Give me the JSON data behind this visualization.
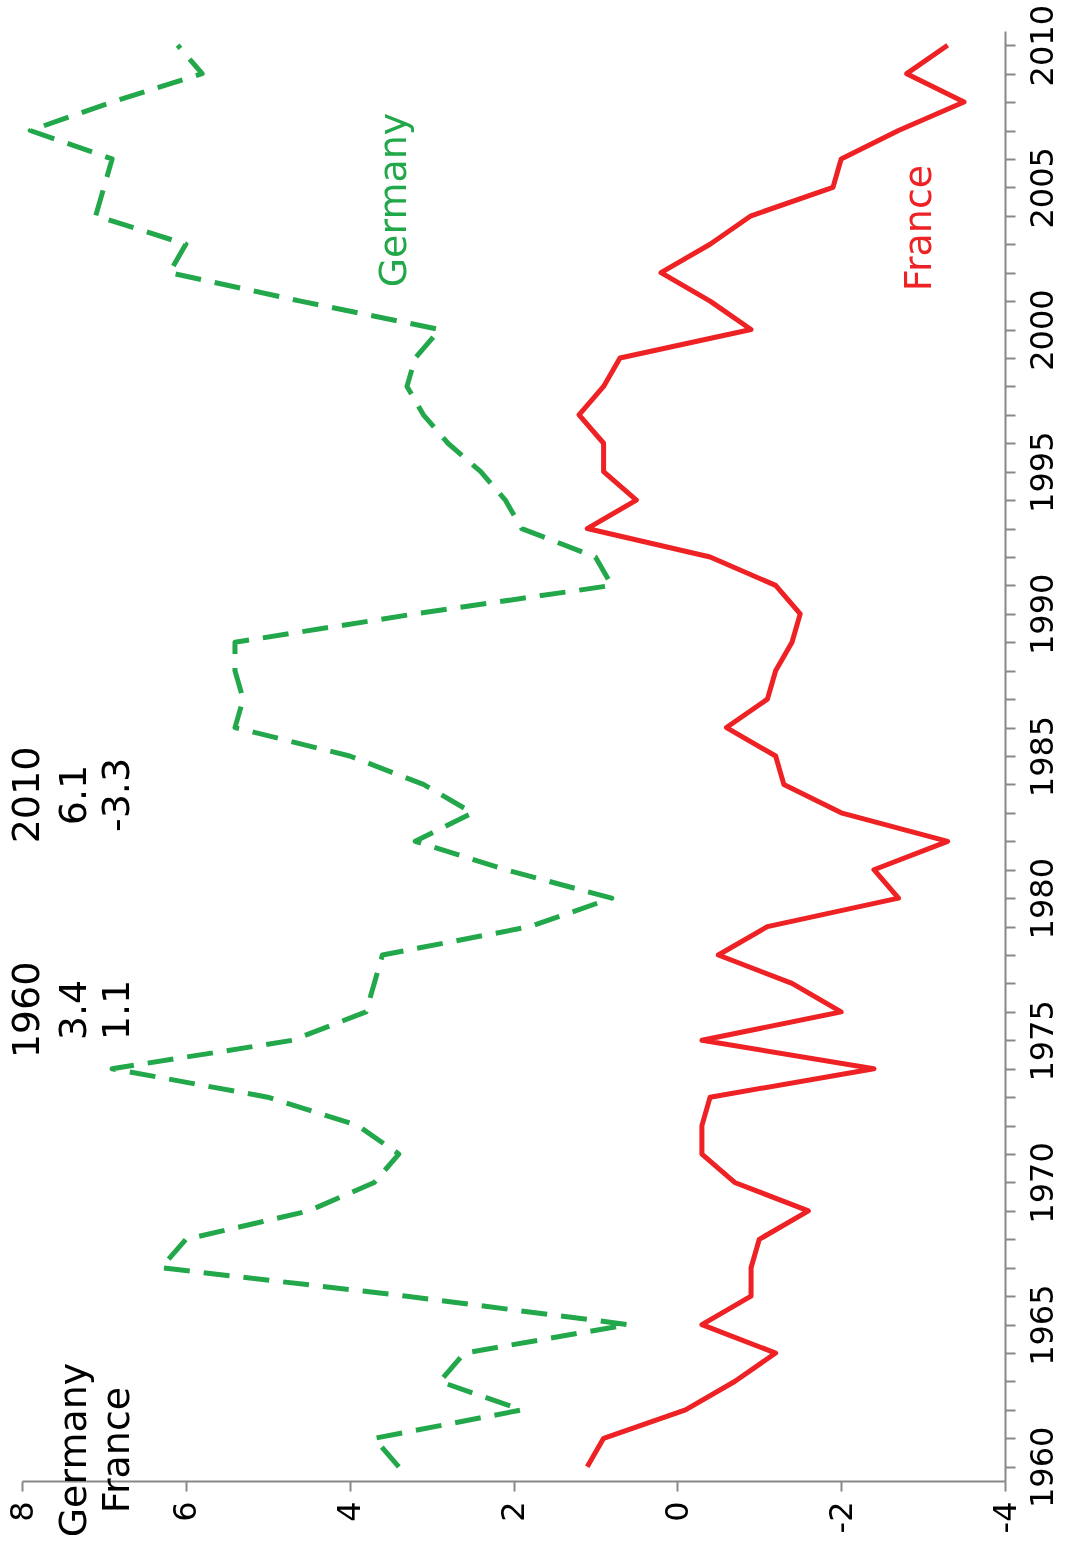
{
  "chart_data": {
    "type": "line",
    "series": [
      {
        "name": "Germany",
        "color": "#22a84a",
        "line_style": "dashed",
        "x": [
          3.4,
          3.7,
          1.9,
          2.9,
          2.6,
          0.6,
          3.3,
          6.3,
          6.0,
          4.5,
          3.7,
          3.4,
          3.9,
          5.0,
          6.9,
          4.7,
          3.8,
          3.7,
          3.6,
          1.8,
          0.8,
          2.1,
          3.2,
          2.5,
          3.1,
          4.0,
          5.4,
          5.3,
          5.4,
          5.4,
          3.2,
          0.8,
          1.0,
          1.9,
          2.1,
          2.4,
          2.8,
          3.1,
          3.3,
          3.2,
          2.9,
          4.6,
          6.2,
          6.0,
          7.1,
          7.0,
          6.9,
          7.9,
          6.9,
          5.8,
          6.1
        ],
        "values": [
          1960,
          1961,
          1962,
          1963,
          1964,
          1965,
          1966,
          1967,
          1968,
          1969,
          1970,
          1971,
          1972,
          1973,
          1974,
          1975,
          1976,
          1977,
          1978,
          1979,
          1980,
          1981,
          1982,
          1983,
          1984,
          1985,
          1986,
          1987,
          1988,
          1989,
          1990,
          1991,
          1992,
          1993,
          1994,
          1995,
          1996,
          1997,
          1998,
          1999,
          2000,
          2001,
          2002,
          2003,
          2004,
          2005,
          2006,
          2007,
          2008,
          2009,
          2010
        ]
      },
      {
        "name": "France",
        "color": "#ee2124",
        "line_style": "solid",
        "x": [
          1.1,
          0.9,
          -0.1,
          -0.7,
          -1.2,
          -0.3,
          -0.9,
          -0.9,
          -1.0,
          -1.6,
          -0.7,
          -0.3,
          -0.3,
          -0.4,
          -2.4,
          -0.3,
          -2.0,
          -1.4,
          -0.5,
          -1.1,
          -2.7,
          -2.4,
          -3.3,
          -2.0,
          -1.3,
          -1.2,
          -0.6,
          -1.1,
          -1.2,
          -1.4,
          -1.5,
          -1.2,
          -0.4,
          1.1,
          0.5,
          0.9,
          0.9,
          1.2,
          0.9,
          0.7,
          -0.9,
          -0.4,
          0.2,
          -0.4,
          -0.9,
          -1.9,
          -2.0,
          -2.7,
          -3.5,
          -2.8,
          -3.3
        ],
        "values": [
          1960,
          1961,
          1962,
          1963,
          1964,
          1965,
          1966,
          1967,
          1968,
          1969,
          1970,
          1971,
          1972,
          1973,
          1974,
          1975,
          1976,
          1977,
          1978,
          1979,
          1980,
          1981,
          1982,
          1983,
          1984,
          1985,
          1986,
          1987,
          1988,
          1989,
          1990,
          1991,
          1992,
          1993,
          1994,
          1995,
          1996,
          1997,
          1998,
          1999,
          2000,
          2001,
          2002,
          2003,
          2004,
          2005,
          2006,
          2007,
          2008,
          2009,
          2010
        ]
      }
    ],
    "xlim": [
      8,
      -4
    ],
    "xticks": [
      8,
      6,
      4,
      2,
      0,
      -2,
      -4
    ],
    "ylim": [
      1959.5,
      2010.5
    ],
    "yticks": [
      1960,
      {
        "value": 1961,
        "label": null
      },
      {
        "value": 1962,
        "label": null
      },
      {
        "value": 1963,
        "label": null
      },
      {
        "value": 1964,
        "label": null
      },
      1965,
      {
        "value": 1966,
        "label": null
      },
      {
        "value": 1967,
        "label": null
      },
      {
        "value": 1968,
        "label": null
      },
      {
        "value": 1969,
        "label": null
      },
      1970,
      {
        "value": 1971,
        "label": null
      },
      {
        "value": 1972,
        "label": null
      },
      {
        "value": 1973,
        "label": null
      },
      {
        "value": 1974,
        "label": null
      },
      1975,
      {
        "value": 1976,
        "label": null
      },
      {
        "value": 1977,
        "label": null
      },
      {
        "value": 1978,
        "label": null
      },
      {
        "value": 1979,
        "label": null
      },
      1980,
      {
        "value": 1981,
        "label": null
      },
      {
        "value": 1982,
        "label": null
      },
      {
        "value": 1983,
        "label": null
      },
      {
        "value": 1984,
        "label": null
      },
      1985,
      {
        "value": 1986,
        "label": null
      },
      {
        "value": 1987,
        "label": null
      },
      {
        "value": 1988,
        "label": null
      },
      {
        "value": 1989,
        "label": null
      },
      1990,
      {
        "value": 1991,
        "label": null
      },
      {
        "value": 1992,
        "label": null
      },
      {
        "value": 1993,
        "label": null
      },
      {
        "value": 1994,
        "label": null
      },
      1995,
      {
        "value": 1996,
        "label": null
      },
      {
        "value": 1997,
        "label": null
      },
      {
        "value": 1998,
        "label": null
      },
      {
        "value": 1999,
        "label": null
      },
      2000,
      {
        "value": 2001,
        "label": null
      },
      {
        "value": 2002,
        "label": null
      },
      {
        "value": 2003,
        "label": null
      },
      {
        "value": 2004,
        "label": null
      },
      2005,
      {
        "value": 2006,
        "label": null
      },
      {
        "value": 2007,
        "label": null
      },
      {
        "value": 2008,
        "label": null
      },
      {
        "value": 2009,
        "label": null
      },
      2010
    ],
    "annotations": [
      "1960",
      "3.4",
      "1.1",
      "2010",
      "6.1",
      "-3.3"
    ]
  }
}
